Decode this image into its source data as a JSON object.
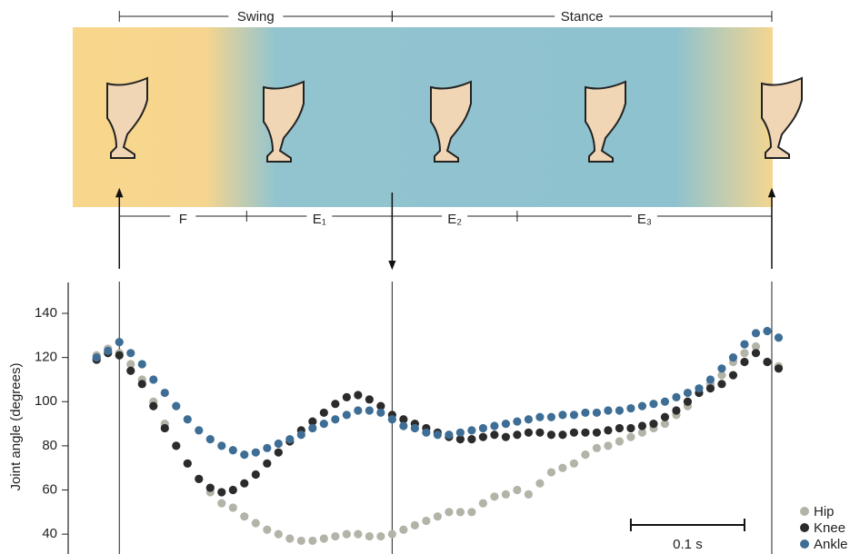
{
  "chart_data": {
    "type": "scatter",
    "y_label": "Joint angle (degrees)",
    "ylim": [
      31,
      154
    ],
    "yticks": [
      40,
      60,
      80,
      100,
      120,
      140
    ],
    "xlim": [
      -0.025,
      0.67
    ],
    "x": [
      0,
      0.01,
      0.02,
      0.03,
      0.04,
      0.05,
      0.06,
      0.07,
      0.08,
      0.09,
      0.1,
      0.11,
      0.12,
      0.13,
      0.14,
      0.15,
      0.16,
      0.17,
      0.18,
      0.19,
      0.2,
      0.21,
      0.22,
      0.23,
      0.24,
      0.25,
      0.26,
      0.27,
      0.28,
      0.29,
      0.3,
      0.31,
      0.32,
      0.33,
      0.34,
      0.35,
      0.36,
      0.37,
      0.38,
      0.39,
      0.4,
      0.41,
      0.42,
      0.43,
      0.44,
      0.45,
      0.46,
      0.47,
      0.48,
      0.49,
      0.5,
      0.51,
      0.52,
      0.53,
      0.54,
      0.55,
      0.56,
      0.57,
      0.58,
      0.59,
      0.6
    ],
    "series": [
      {
        "name": "Hip",
        "color": "#b3b3a8",
        "values": [
          121,
          124,
          122,
          117,
          110,
          100,
          90,
          80,
          72,
          65,
          59,
          54,
          52,
          48,
          45,
          42,
          40,
          38,
          37,
          37,
          38,
          39,
          40,
          40,
          39,
          39,
          40,
          42,
          44,
          46,
          48,
          50,
          50,
          50,
          54,
          57,
          58,
          60,
          58,
          63,
          68,
          70,
          72,
          76,
          79,
          80,
          82,
          84,
          86,
          88,
          90,
          94,
          98,
          104,
          108,
          112,
          118,
          122,
          125,
          118,
          116
        ]
      },
      {
        "name": "Knee",
        "color": "#2b2b2b",
        "values": [
          119,
          122,
          121,
          114,
          108,
          98,
          88,
          80,
          72,
          65,
          61,
          59,
          60,
          63,
          67,
          72,
          77,
          82,
          87,
          91,
          95,
          99,
          102,
          103,
          101,
          98,
          94,
          92,
          90,
          88,
          86,
          84,
          83,
          83,
          84,
          85,
          84,
          85,
          86,
          86,
          85,
          85,
          86,
          86,
          86,
          87,
          88,
          88,
          89,
          90,
          93,
          96,
          100,
          104,
          106,
          108,
          112,
          118,
          122,
          118,
          115
        ]
      },
      {
        "name": "Ankle",
        "color": "#3e6e96",
        "values": [
          120,
          123,
          127,
          122,
          117,
          110,
          104,
          98,
          92,
          87,
          83,
          80,
          78,
          76,
          77,
          79,
          81,
          83,
          85,
          88,
          90,
          92,
          94,
          96,
          96,
          95,
          92,
          89,
          88,
          86,
          85,
          85,
          86,
          87,
          88,
          89,
          90,
          91,
          92,
          93,
          93,
          94,
          94,
          95,
          95,
          96,
          96,
          97,
          98,
          99,
          100,
          102,
          104,
          106,
          110,
          115,
          120,
          126,
          131,
          132,
          129
        ]
      }
    ],
    "events": [
      0.02,
      0.26,
      0.594
    ],
    "gait": [
      {
        "label": "Swing",
        "start": 0.02,
        "end": 0.26
      },
      {
        "label": "Stance",
        "start": 0.26,
        "end": 0.594
      }
    ],
    "phases": [
      {
        "label": "F",
        "start": 0.02,
        "end": 0.132
      },
      {
        "label": "E₁",
        "start": 0.132,
        "end": 0.26
      },
      {
        "label": "E₂",
        "start": 0.26,
        "end": 0.37
      },
      {
        "label": "E₃",
        "start": 0.37,
        "end": 0.594
      }
    ],
    "scale_bar": {
      "start": 0.47,
      "length": {
        "value": 0.1,
        "label": "0.1 s"
      }
    },
    "legend": "bottom-right"
  }
}
